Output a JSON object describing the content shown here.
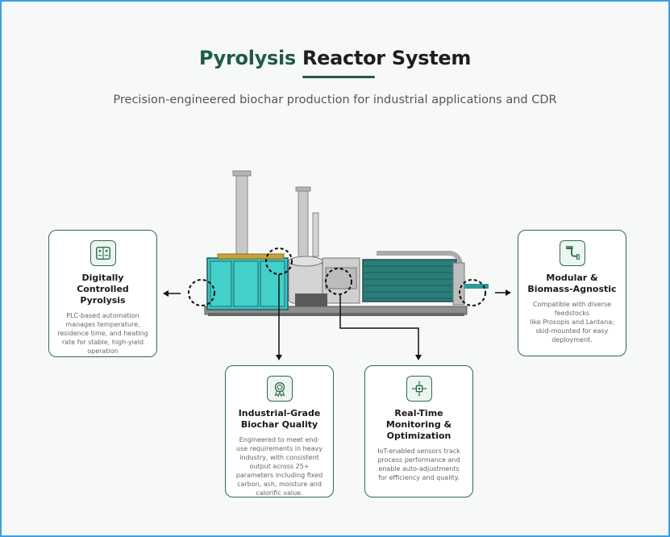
{
  "header": {
    "title_accent": "Pyrolysis",
    "title_rest": " Reactor System",
    "subtitle": "Precision-engineered biochar production for industrial applications and CDR"
  },
  "cards": {
    "left": {
      "icon": "control-panel-icon",
      "title": "Digitally Controlled Pyrolysis",
      "text": "PLC-based automation manages temperature, residence time, and heating rate for stable, high-yield operation"
    },
    "right": {
      "icon": "pipe-icon",
      "title": "Modular & Biomass-Agnostic",
      "text": "Compatible with diverse feedstocks\nlike Prosopis and Lantana; skid-mounted for easy deployment."
    },
    "quality": {
      "icon": "quality-badge-icon",
      "title": "Industrial-Grade Biochar Quality",
      "text": "Engineered to meet end-use requirements in heavy industry, with consistent output across 25+ parameters including fixed carbon, ash, moisture and calorific value."
    },
    "monitoring": {
      "icon": "iot-chip-icon",
      "title": "Real-Time Monitoring & Optimization",
      "text": "IoT-enabled sensors track process performance and enable auto-adjustments for efficiency and quality."
    }
  },
  "colors": {
    "accent": "#1f5c43",
    "reactor_teal": "#3cc4c0",
    "border_blue": "#3aa0e8"
  }
}
